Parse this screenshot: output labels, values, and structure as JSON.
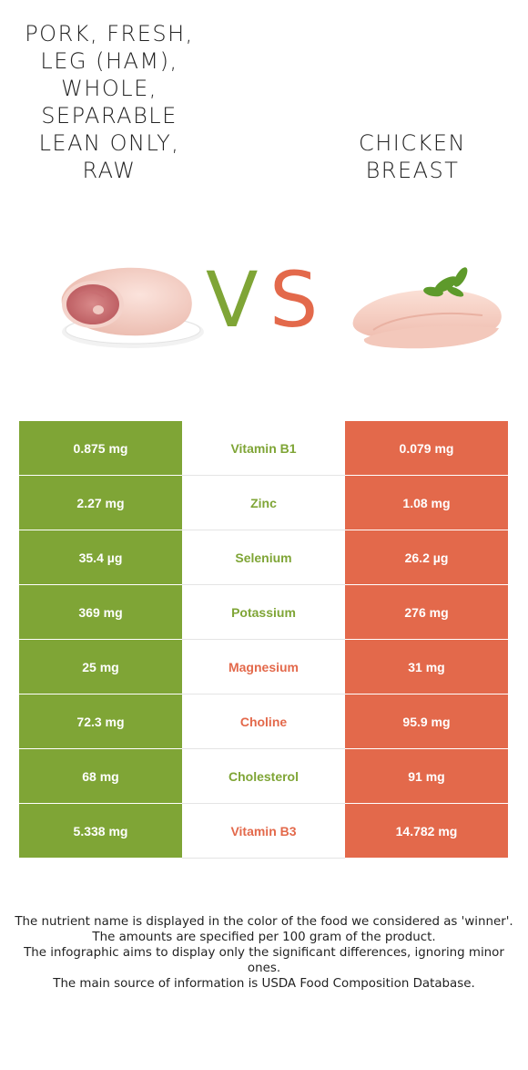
{
  "left_food": {
    "name": "Pork, fresh, leg (ham), whole, separable lean only, raw",
    "name_lines": [
      "Pork, fresh,",
      "leg (ham),",
      "whole,",
      "separable",
      "lean only,",
      "raw"
    ],
    "color": "#7fa536",
    "image_icon": "pork-ham-image"
  },
  "right_food": {
    "name": "Chicken breast",
    "name_lines": [
      "Chicken",
      "breast"
    ],
    "color": "#e3694b",
    "image_icon": "chicken-breast-image"
  },
  "vs": {
    "v": "V",
    "s": "S"
  },
  "nutrients": [
    {
      "name": "Vitamin B1",
      "left": "0.875 mg",
      "right": "0.079 mg",
      "winner": "left"
    },
    {
      "name": "Zinc",
      "left": "2.27 mg",
      "right": "1.08 mg",
      "winner": "left"
    },
    {
      "name": "Selenium",
      "left": "35.4 µg",
      "right": "26.2 µg",
      "winner": "left"
    },
    {
      "name": "Potassium",
      "left": "369 mg",
      "right": "276 mg",
      "winner": "left"
    },
    {
      "name": "Magnesium",
      "left": "25 mg",
      "right": "31 mg",
      "winner": "right"
    },
    {
      "name": "Choline",
      "left": "72.3 mg",
      "right": "95.9 mg",
      "winner": "right"
    },
    {
      "name": "Cholesterol",
      "left": "68 mg",
      "right": "91 mg",
      "winner": "left"
    },
    {
      "name": "Vitamin B3",
      "left": "5.338 mg",
      "right": "14.782 mg",
      "winner": "right"
    }
  ],
  "footnote": [
    "The nutrient name is displayed in the color of the food we considered as 'winner'.",
    "The amounts are specified per 100 gram of the product.",
    "The infographic aims to display only the significant differences, ignoring minor ones.",
    "The main source of information is USDA Food Composition Database."
  ]
}
